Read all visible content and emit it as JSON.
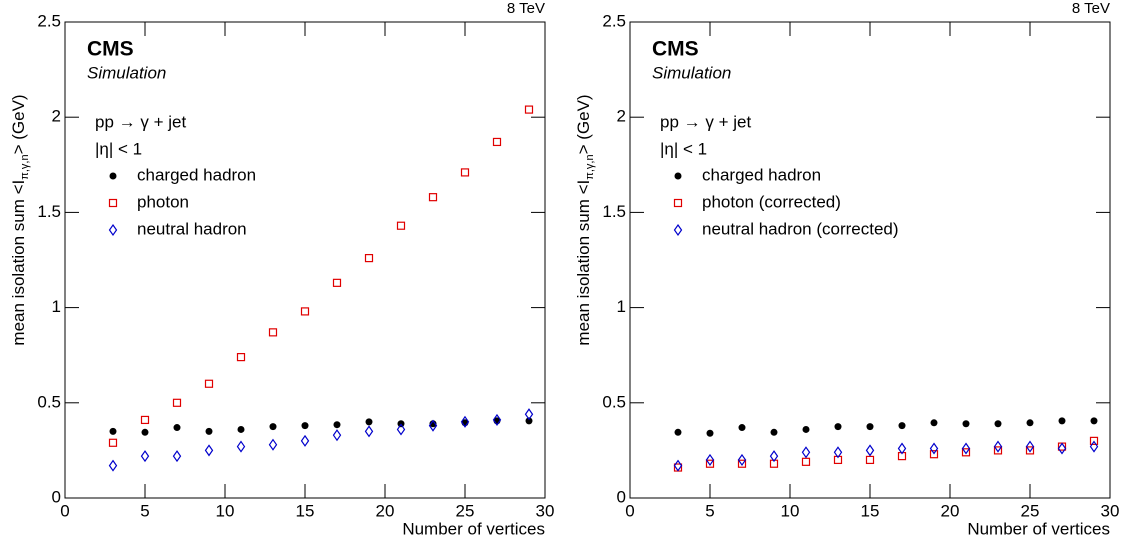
{
  "chart_data": [
    {
      "type": "scatter",
      "energy_label": "8 TeV",
      "experiment": "CMS",
      "subtitle": "Simulation",
      "annotations": [
        "pp → γ + jet",
        "|η| < 1"
      ],
      "ylabel": [
        "mean isolation sum <I",
        "π,γ,n",
        "> (GeV)"
      ],
      "xlabel": "Number of vertices",
      "xlim": [
        0,
        30
      ],
      "ylim": [
        0,
        2.5
      ],
      "xticks": [
        0,
        5,
        10,
        15,
        20,
        25,
        30
      ],
      "yticks": [
        0,
        0.5,
        1,
        1.5,
        2,
        2.5
      ],
      "x": [
        3,
        5,
        7,
        9,
        11,
        13,
        15,
        17,
        19,
        21,
        23,
        25,
        27,
        29
      ],
      "series": [
        {
          "name": "charged hadron",
          "color": "#000000",
          "marker": "circle",
          "values": [
            0.35,
            0.345,
            0.37,
            0.35,
            0.36,
            0.375,
            0.38,
            0.385,
            0.4,
            0.39,
            0.39,
            0.395,
            0.405,
            0.405
          ]
        },
        {
          "name": "photon",
          "color": "#e00000",
          "marker": "square",
          "values": [
            0.29,
            0.41,
            0.5,
            0.6,
            0.74,
            0.87,
            0.98,
            1.13,
            1.26,
            1.43,
            1.58,
            1.71,
            1.87,
            2.04
          ]
        },
        {
          "name": "neutral hadron",
          "color": "#0000cc",
          "marker": "diamond",
          "values": [
            0.17,
            0.22,
            0.22,
            0.25,
            0.27,
            0.28,
            0.3,
            0.33,
            0.35,
            0.36,
            0.38,
            0.4,
            0.41,
            0.44
          ]
        }
      ]
    },
    {
      "type": "scatter",
      "energy_label": "8 TeV",
      "experiment": "CMS",
      "subtitle": "Simulation",
      "annotations": [
        "pp → γ + jet",
        "|η| < 1"
      ],
      "ylabel": [
        "mean isolation sum <I",
        "π,γ,n",
        "> (GeV)"
      ],
      "xlabel": "Number of vertices",
      "xlim": [
        0,
        30
      ],
      "ylim": [
        0,
        2.5
      ],
      "xticks": [
        0,
        5,
        10,
        15,
        20,
        25,
        30
      ],
      "yticks": [
        0,
        0.5,
        1,
        1.5,
        2,
        2.5
      ],
      "x": [
        3,
        5,
        7,
        9,
        11,
        13,
        15,
        17,
        19,
        21,
        23,
        25,
        27,
        29
      ],
      "series": [
        {
          "name": "charged hadron",
          "color": "#000000",
          "marker": "circle",
          "values": [
            0.345,
            0.34,
            0.37,
            0.345,
            0.36,
            0.375,
            0.375,
            0.38,
            0.395,
            0.39,
            0.39,
            0.395,
            0.405,
            0.405
          ]
        },
        {
          "name": "photon (corrected)",
          "color": "#e00000",
          "marker": "square",
          "values": [
            0.16,
            0.18,
            0.18,
            0.18,
            0.19,
            0.2,
            0.2,
            0.22,
            0.23,
            0.24,
            0.25,
            0.25,
            0.27,
            0.3
          ]
        },
        {
          "name": "neutral hadron (corrected)",
          "color": "#0000cc",
          "marker": "diamond",
          "values": [
            0.17,
            0.2,
            0.2,
            0.22,
            0.24,
            0.24,
            0.25,
            0.26,
            0.26,
            0.26,
            0.27,
            0.27,
            0.26,
            0.27
          ]
        }
      ]
    }
  ]
}
